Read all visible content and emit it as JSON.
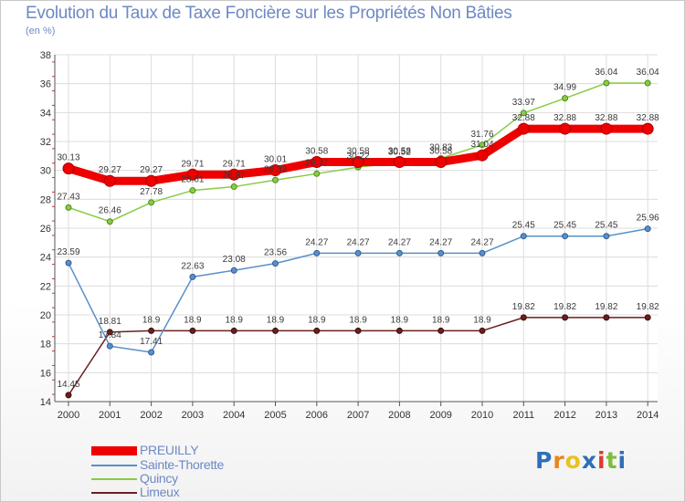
{
  "header": {
    "title": "Evolution du Taux de Taxe Foncière sur les Propriétés Non Bâties",
    "subtitle": "(en %)"
  },
  "chart_data": {
    "type": "line",
    "title": "Evolution du Taux de Taxe Foncière sur les Propriétés Non Bâties",
    "subtitle": "(en %)",
    "xlabel": "",
    "ylabel": "",
    "categories": [
      "2000",
      "2001",
      "2002",
      "2003",
      "2004",
      "2005",
      "2006",
      "2007",
      "2008",
      "2009",
      "2010",
      "2011",
      "2012",
      "2013",
      "2014"
    ],
    "ylim": [
      14,
      38
    ],
    "yticks": [
      14,
      16,
      18,
      20,
      22,
      24,
      26,
      28,
      30,
      32,
      34,
      36,
      38
    ],
    "grid": true,
    "legend_position": "bottom-left",
    "series": [
      {
        "name": "PREUILLY",
        "color": "#ee0000",
        "values": [
          30.13,
          29.27,
          29.27,
          29.71,
          29.71,
          30.01,
          30.58,
          30.58,
          30.58,
          30.58,
          31.04,
          32.88,
          32.88,
          32.88,
          32.88
        ],
        "labels": [
          "30.13",
          "29.27",
          "29.27",
          "29.71",
          "29.71",
          "30.01",
          "30.58",
          "30.58",
          "30.58",
          "30.58",
          "31.04",
          "32.88",
          "32.88",
          "32.88",
          "32.88"
        ]
      },
      {
        "name": "Sainte-Thorette",
        "color": "#5a8fc8",
        "values": [
          23.59,
          17.84,
          17.41,
          22.63,
          23.08,
          23.56,
          24.27,
          24.27,
          24.27,
          24.27,
          24.27,
          25.45,
          25.45,
          25.45,
          25.96
        ],
        "labels": [
          "23.59",
          "17.84",
          "17.41",
          "22.63",
          "23.08",
          "23.56",
          "24.27",
          "24.27",
          "24.27",
          "24.27",
          "24.27",
          "25.45",
          "25.45",
          "25.45",
          "25.96"
        ]
      },
      {
        "name": "Quincy",
        "color": "#88cc44",
        "values": [
          27.43,
          26.46,
          27.78,
          28.61,
          28.87,
          29.33,
          29.77,
          30.22,
          30.52,
          30.83,
          31.76,
          33.97,
          34.99,
          36.04,
          36.04
        ],
        "labels": [
          "27.43",
          "26.46",
          "27.78",
          "28.61",
          "28.87",
          "29.33",
          "29.77",
          "30.22",
          "30.52",
          "30.83",
          "31.76",
          "33.97",
          "34.99",
          "36.04",
          "36.04"
        ]
      },
      {
        "name": "Limeux",
        "color": "#6b1f1f",
        "values": [
          14.45,
          18.81,
          18.9,
          18.9,
          18.9,
          18.9,
          18.9,
          18.9,
          18.9,
          18.9,
          18.9,
          19.82,
          19.82,
          19.82,
          19.82
        ],
        "labels": [
          "14.45",
          "18.81",
          "18.9",
          "18.9",
          "18.9",
          "18.9",
          "18.9",
          "18.9",
          "18.9",
          "18.9",
          "18.9",
          "19.82",
          "19.82",
          "19.82",
          "19.82"
        ]
      }
    ]
  },
  "legend": {
    "items": [
      {
        "label": "PREUILLY",
        "color": "#ee0000"
      },
      {
        "label": "Sainte-Thorette",
        "color": "#5a8fc8"
      },
      {
        "label": "Quincy",
        "color": "#88cc44"
      },
      {
        "label": "Limeux",
        "color": "#6b1f1f"
      }
    ]
  },
  "logo": {
    "text": "Proxiti",
    "letters": [
      "P",
      "r",
      "o",
      "x",
      "i",
      "t",
      "i"
    ],
    "colors": [
      "#2e6fb7",
      "#e8861e",
      "#e8c21e",
      "#2e6fb7",
      "#e03b2b",
      "#7bbf3a",
      "#2e6fb7"
    ]
  }
}
